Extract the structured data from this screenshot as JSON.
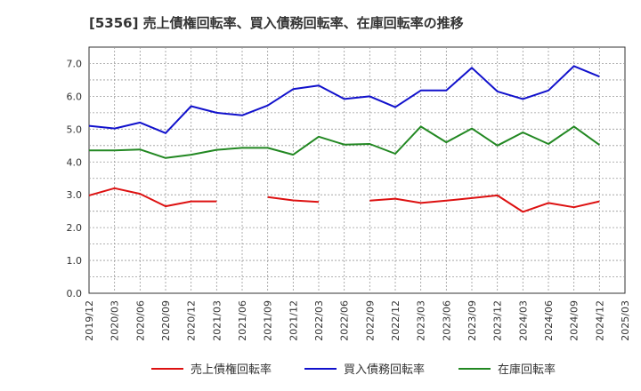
{
  "chart_data": {
    "type": "line",
    "title": "[5356]  売上債権回転率、買入債務回転率、在庫回転率の推移",
    "xlabel": "",
    "ylabel": "",
    "ylim": [
      0,
      7.5
    ],
    "yticks": [
      "0.0",
      "1.0",
      "2.0",
      "3.0",
      "4.0",
      "5.0",
      "6.0",
      "7.0"
    ],
    "categories": [
      "2019/12",
      "2020/03",
      "2020/06",
      "2020/09",
      "2020/12",
      "2021/03",
      "2021/06",
      "2021/09",
      "2021/12",
      "2022/03",
      "2022/06",
      "2022/09",
      "2022/12",
      "2023/03",
      "2023/06",
      "2023/09",
      "2023/12",
      "2024/03",
      "2024/06",
      "2024/09",
      "2024/12",
      "2025/03"
    ],
    "grid": true,
    "legend_position": "bottom",
    "series": [
      {
        "name": "売上債権回転率",
        "color": "#dd1111",
        "values": [
          2.98,
          3.2,
          3.03,
          2.65,
          2.8,
          2.8,
          null,
          2.93,
          2.83,
          2.78,
          null,
          2.82,
          2.88,
          2.75,
          2.82,
          2.9,
          2.98,
          2.48,
          2.75,
          2.62,
          2.8,
          null
        ]
      },
      {
        "name": "買入債務回転率",
        "color": "#1111cc",
        "values": [
          5.1,
          5.02,
          5.2,
          4.88,
          5.7,
          5.5,
          5.42,
          5.72,
          6.22,
          6.33,
          5.92,
          6.0,
          5.67,
          6.18,
          6.18,
          6.87,
          6.15,
          5.92,
          6.18,
          6.92,
          6.6,
          null
        ]
      },
      {
        "name": "在庫回転率",
        "color": "#228822",
        "values": [
          4.35,
          4.35,
          4.38,
          4.12,
          4.22,
          4.37,
          4.43,
          4.43,
          4.22,
          4.77,
          4.53,
          4.55,
          4.25,
          5.08,
          4.6,
          5.02,
          4.5,
          4.9,
          4.55,
          5.08,
          4.52,
          null
        ]
      }
    ]
  }
}
